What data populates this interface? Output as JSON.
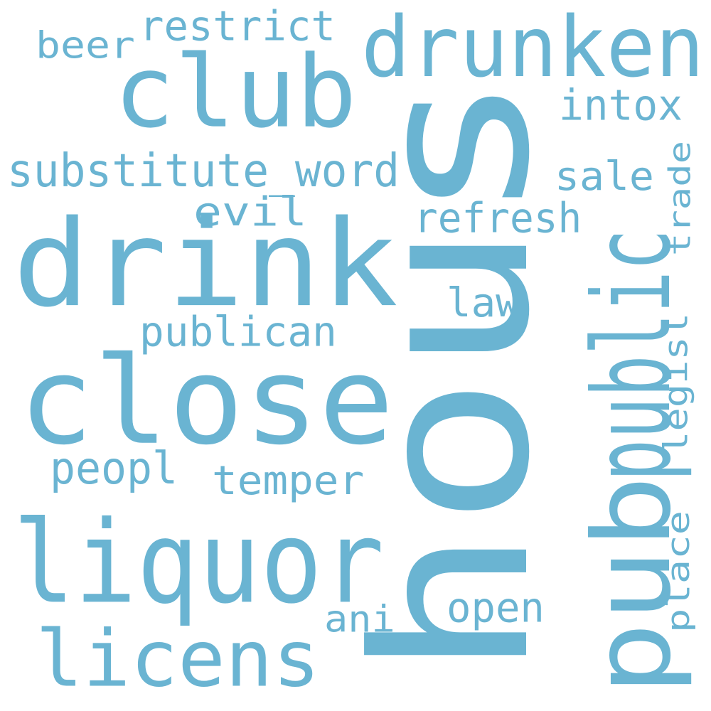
{
  "word_color": "#6ab4d2",
  "background_color": "#ffffff",
  "words": [
    "hous",
    "drink",
    "close",
    "pub",
    "liquor",
    "club",
    "public",
    "drunken",
    "licens",
    "substitute_word",
    "refresh",
    "temper",
    "publican",
    "restrict",
    "beer",
    "evil",
    "intox",
    "sale",
    "law",
    "peopl",
    "open",
    "ani",
    "trade",
    "legisl",
    "place"
  ]
}
